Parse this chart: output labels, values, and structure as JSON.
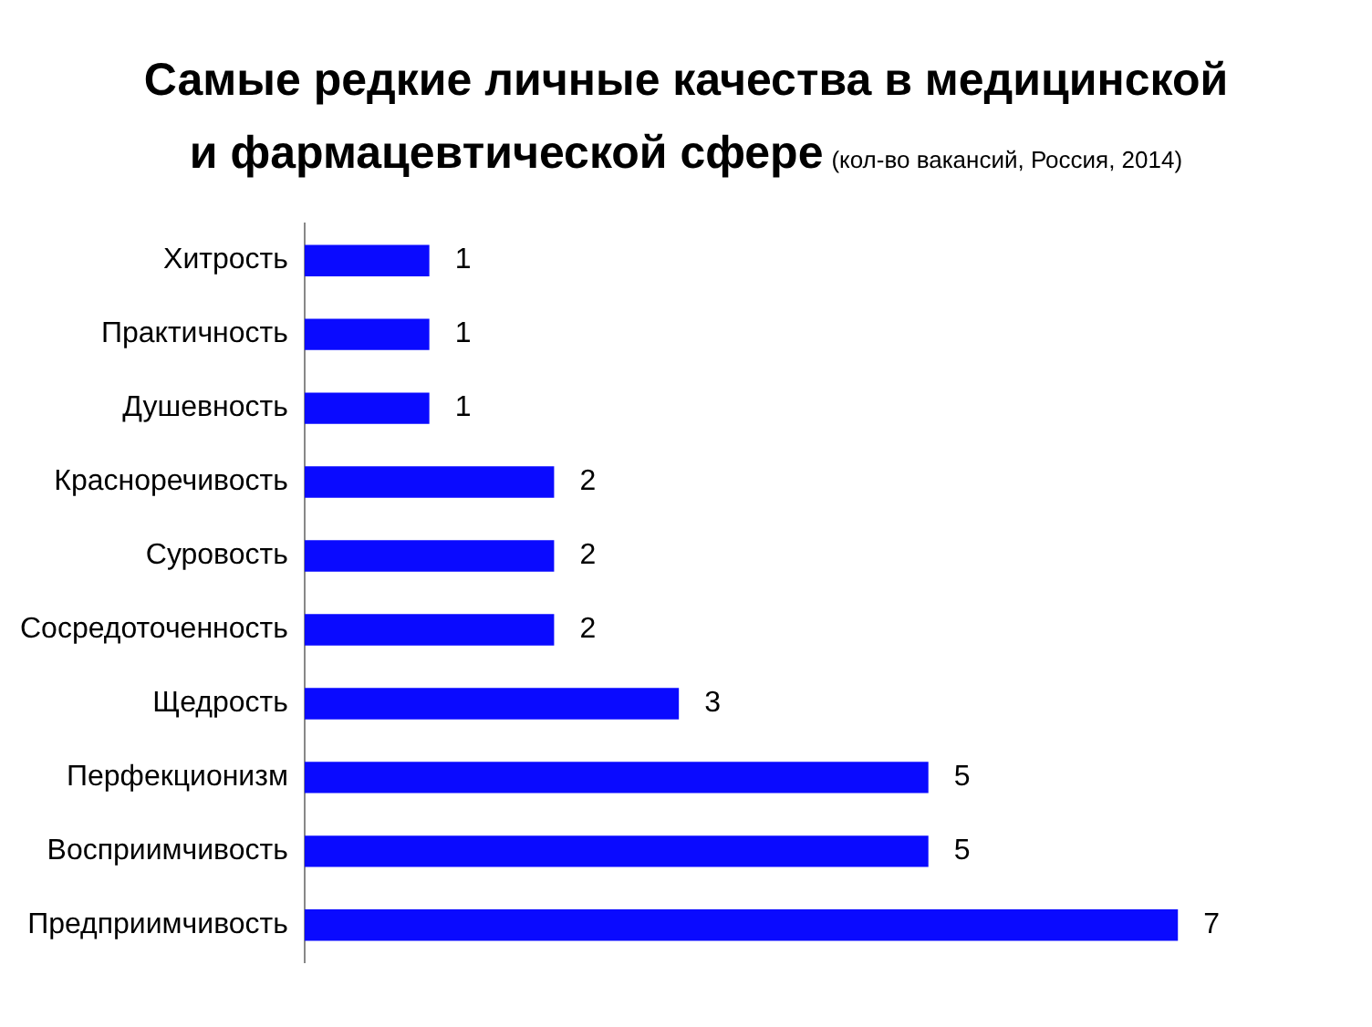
{
  "chart_data": {
    "type": "bar",
    "orientation": "horizontal",
    "title": "Самые редкие личные качества в медицинской и фармацевтической сфере",
    "subtitle": "(кол-во вакансий, Россия, 2014)",
    "categories": [
      "Хитрость",
      "Практичность",
      "Душевность",
      "Красноречивость",
      "Суровость",
      "Сосредоточенность",
      "Щедрость",
      "Перфекционизм",
      "Восприимчивость",
      "Предприимчивость"
    ],
    "values": [
      1,
      1,
      1,
      2,
      2,
      2,
      3,
      5,
      5,
      7
    ],
    "color": "#0a0aff",
    "data_labels": true,
    "grid": false,
    "legend": false
  }
}
